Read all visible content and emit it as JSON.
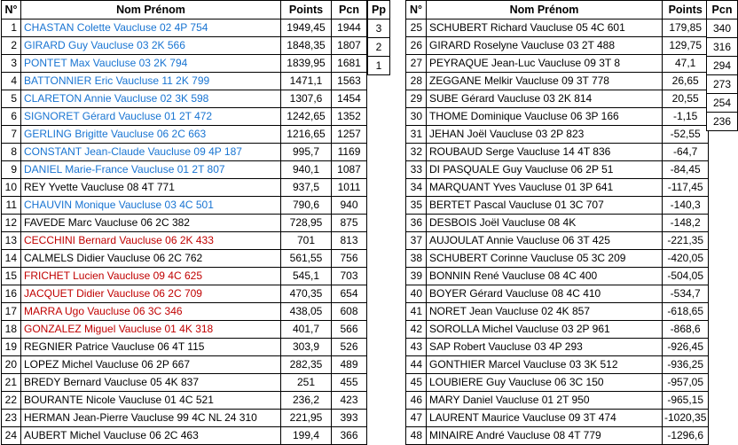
{
  "colors": {
    "name_blue": "#1874D2",
    "name_red": "#C00000",
    "name_black": "#000000",
    "border": "#000000",
    "background": "#FFFFFF"
  },
  "left_table": {
    "headers": {
      "rank": "N°",
      "name": "Nom Prénom",
      "points": "Points",
      "pcn": "Pcn",
      "pp": "Pp"
    },
    "rows": [
      {
        "rank": "1",
        "name": "CHASTAN Colette Vaucluse 02 4P 754",
        "points": "1949,45",
        "pcn": "1944",
        "pp": "3",
        "color": "blue"
      },
      {
        "rank": "2",
        "name": "GIRARD Guy Vaucluse 03 2K 566",
        "points": "1848,35",
        "pcn": "1807",
        "pp": "2",
        "color": "blue"
      },
      {
        "rank": "3",
        "name": "PONTET Max Vaucluse 03 2K 794",
        "points": "1839,95",
        "pcn": "1681",
        "pp": "1",
        "color": "blue"
      },
      {
        "rank": "4",
        "name": "BATTONNIER Eric Vaucluse 11 2K 799",
        "points": "1471,1",
        "pcn": "1563",
        "pp": "",
        "color": "blue"
      },
      {
        "rank": "5",
        "name": "CLARETON Annie Vaucluse 02 3K 598",
        "points": "1307,6",
        "pcn": "1454",
        "pp": "",
        "color": "blue"
      },
      {
        "rank": "6",
        "name": "SIGNORET Gérard Vaucluse 01 2T 472",
        "points": "1242,65",
        "pcn": "1352",
        "pp": "",
        "color": "blue"
      },
      {
        "rank": "7",
        "name": "GERLING Brigitte Vaucluse 06 2C 663",
        "points": "1216,65",
        "pcn": "1257",
        "pp": "",
        "color": "blue"
      },
      {
        "rank": "8",
        "name": "CONSTANT Jean-Claude Vaucluse 09 4P 187",
        "points": "995,7",
        "pcn": "1169",
        "pp": "",
        "color": "blue"
      },
      {
        "rank": "9",
        "name": "DANIEL Marie-France Vaucluse 01 2T 807",
        "points": "940,1",
        "pcn": "1087",
        "pp": "",
        "color": "blue"
      },
      {
        "rank": "10",
        "name": "REY Yvette Vaucluse 08 4T 771",
        "points": "937,5",
        "pcn": "1011",
        "pp": "",
        "color": "black"
      },
      {
        "rank": "11",
        "name": "CHAUVIN Monique Vaucluse 03 4C 501",
        "points": "790,6",
        "pcn": "940",
        "pp": "",
        "color": "blue"
      },
      {
        "rank": "12",
        "name": "FAVEDE Marc Vaucluse 06 2C 382",
        "points": "728,95",
        "pcn": "875",
        "pp": "",
        "color": "black"
      },
      {
        "rank": "13",
        "name": "CECCHINI Bernard Vaucluse 06 2K 433",
        "points": "701",
        "pcn": "813",
        "pp": "",
        "color": "red"
      },
      {
        "rank": "14",
        "name": "CALMELS Didier Vaucluse 06 2C 762",
        "points": "561,55",
        "pcn": "756",
        "pp": "",
        "color": "black"
      },
      {
        "rank": "15",
        "name": "FRICHET Lucien Vaucluse 09 4C 625",
        "points": "545,1",
        "pcn": "703",
        "pp": "",
        "color": "red"
      },
      {
        "rank": "16",
        "name": "JACQUET Didier Vaucluse 06 2C 709",
        "points": "470,35",
        "pcn": "654",
        "pp": "",
        "color": "red"
      },
      {
        "rank": "17",
        "name": "MARRA Ugo Vaucluse 06 3C 346",
        "points": "438,05",
        "pcn": "608",
        "pp": "",
        "color": "red"
      },
      {
        "rank": "18",
        "name": "GONZALEZ Miguel Vaucluse 01 4K 318",
        "points": "401,7",
        "pcn": "566",
        "pp": "",
        "color": "red"
      },
      {
        "rank": "19",
        "name": "REGNIER Patrice Vaucluse 06 4T 115",
        "points": "303,9",
        "pcn": "526",
        "pp": "",
        "color": "black"
      },
      {
        "rank": "20",
        "name": "LOPEZ Michel Vaucluse 06 2P 667",
        "points": "282,35",
        "pcn": "489",
        "pp": "",
        "color": "black"
      },
      {
        "rank": "21",
        "name": "BREDY Bernard Vaucluse 05 4K 837",
        "points": "251",
        "pcn": "455",
        "pp": "",
        "color": "black"
      },
      {
        "rank": "22",
        "name": "BOURANTE Nicole Vaucluse 01 4C 521",
        "points": "236,2",
        "pcn": "423",
        "pp": "",
        "color": "black"
      },
      {
        "rank": "23",
        "name": "HERMAN Jean-Pierre Vaucluse 99 4C NL 24 310",
        "points": "221,95",
        "pcn": "393",
        "pp": "",
        "color": "black"
      },
      {
        "rank": "24",
        "name": "AUBERT Michel Vaucluse 06 2C 463",
        "points": "199,4",
        "pcn": "366",
        "pp": "",
        "color": "black"
      }
    ]
  },
  "right_table": {
    "headers": {
      "rank": "N°",
      "name": "Nom Prénom",
      "points": "Points",
      "pcn": "Pcn"
    },
    "rows": [
      {
        "rank": "25",
        "name": "SCHUBERT Richard Vaucluse 05 4C 601",
        "points": "179,85",
        "pcn": "340",
        "color": "black"
      },
      {
        "rank": "26",
        "name": "GIRARD Roselyne Vaucluse 03 2T 488",
        "points": "129,75",
        "pcn": "316",
        "color": "black"
      },
      {
        "rank": "27",
        "name": "PEYRAQUE Jean-Luc Vaucluse 09 3T 8",
        "points": "47,1",
        "pcn": "294",
        "color": "black"
      },
      {
        "rank": "28",
        "name": "ZEGGANE Melkir Vaucluse 09 3T 778",
        "points": "26,65",
        "pcn": "273",
        "color": "black"
      },
      {
        "rank": "29",
        "name": "SUBE Gérard Vaucluse 03 2K 814",
        "points": "20,55",
        "pcn": "254",
        "color": "black"
      },
      {
        "rank": "30",
        "name": "THOME Dominique Vaucluse 06 3P 166",
        "points": "-1,15",
        "pcn": "236",
        "color": "black"
      },
      {
        "rank": "31",
        "name": "JEHAN Joël Vaucluse 03 2P 823",
        "points": "-52,55",
        "pcn": "",
        "color": "black"
      },
      {
        "rank": "32",
        "name": "ROUBAUD Serge Vaucluse 14 4T 836",
        "points": "-64,7",
        "pcn": "",
        "color": "black"
      },
      {
        "rank": "33",
        "name": "DI PASQUALE Guy Vaucluse 06 2P 51",
        "points": "-84,45",
        "pcn": "",
        "color": "black"
      },
      {
        "rank": "34",
        "name": "MARQUANT Yves Vaucluse 01 3P 641",
        "points": "-117,45",
        "pcn": "",
        "color": "black"
      },
      {
        "rank": "35",
        "name": "BERTET Pascal Vaucluse 01 3C 707",
        "points": "-140,3",
        "pcn": "",
        "color": "black"
      },
      {
        "rank": "36",
        "name": "DESBOIS Joël Vaucluse 08 4K",
        "points": "-148,2",
        "pcn": "",
        "color": "black"
      },
      {
        "rank": "37",
        "name": "AUJOULAT Annie Vaucluse 06 3T 425",
        "points": "-221,35",
        "pcn": "",
        "color": "black"
      },
      {
        "rank": "38",
        "name": "SCHUBERT Corinne Vaucluse 05 3C 209",
        "points": "-420,05",
        "pcn": "",
        "color": "black"
      },
      {
        "rank": "39",
        "name": "BONNIN René Vaucluse 08 4C 400",
        "points": "-504,05",
        "pcn": "",
        "color": "black"
      },
      {
        "rank": "40",
        "name": "BOYER Gérard Vaucluse 08 4C 410",
        "points": "-534,7",
        "pcn": "",
        "color": "black"
      },
      {
        "rank": "41",
        "name": "NORET Jean Vaucluse 02 4K 857",
        "points": "-618,65",
        "pcn": "",
        "color": "black"
      },
      {
        "rank": "42",
        "name": "SOROLLA Michel Vaucluse 03 2P 961",
        "points": "-868,6",
        "pcn": "",
        "color": "black"
      },
      {
        "rank": "43",
        "name": "SAP Robert Vaucluse 03 4P 293",
        "points": "-926,45",
        "pcn": "",
        "color": "black"
      },
      {
        "rank": "44",
        "name": "GONTHIER Marcel Vaucluse 03 3K 512",
        "points": "-936,25",
        "pcn": "",
        "color": "black"
      },
      {
        "rank": "45",
        "name": "LOUBIERE Guy Vaucluse 06 3C 150",
        "points": "-957,05",
        "pcn": "",
        "color": "black"
      },
      {
        "rank": "46",
        "name": "MARY Daniel Vaucluse 01 2T 950",
        "points": "-965,15",
        "pcn": "",
        "color": "black"
      },
      {
        "rank": "47",
        "name": "LAURENT Maurice Vaucluse 09 3T 474",
        "points": "-1020,35",
        "pcn": "",
        "color": "black"
      },
      {
        "rank": "48",
        "name": "MINAIRE André Vaucluse 08 4T 779",
        "points": "-1296,6",
        "pcn": "",
        "color": "black"
      }
    ]
  }
}
